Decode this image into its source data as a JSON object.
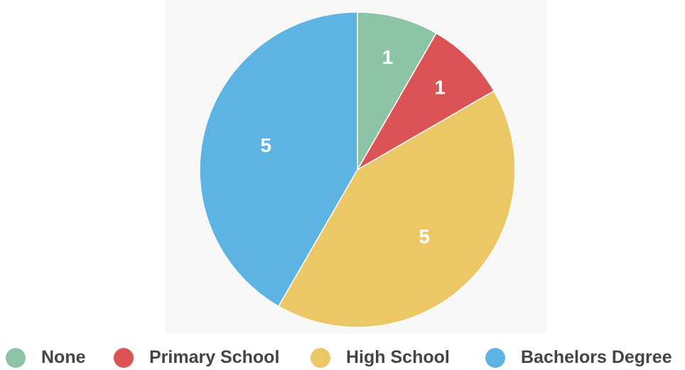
{
  "chart_data": {
    "type": "pie",
    "title": "",
    "slices": [
      {
        "label": "None",
        "value": 1,
        "color": "#8dc4a6"
      },
      {
        "label": "Primary School",
        "value": 1,
        "color": "#db5354"
      },
      {
        "label": "High School",
        "value": 5,
        "color": "#ecc766"
      },
      {
        "label": "Bachelors Degree",
        "value": 5,
        "color": "#5db4e3"
      }
    ],
    "legend": {
      "placement": "bottom",
      "marker": "circle"
    },
    "data_labels": true,
    "start_angle": "12 o'clock",
    "direction": "clockwise"
  }
}
